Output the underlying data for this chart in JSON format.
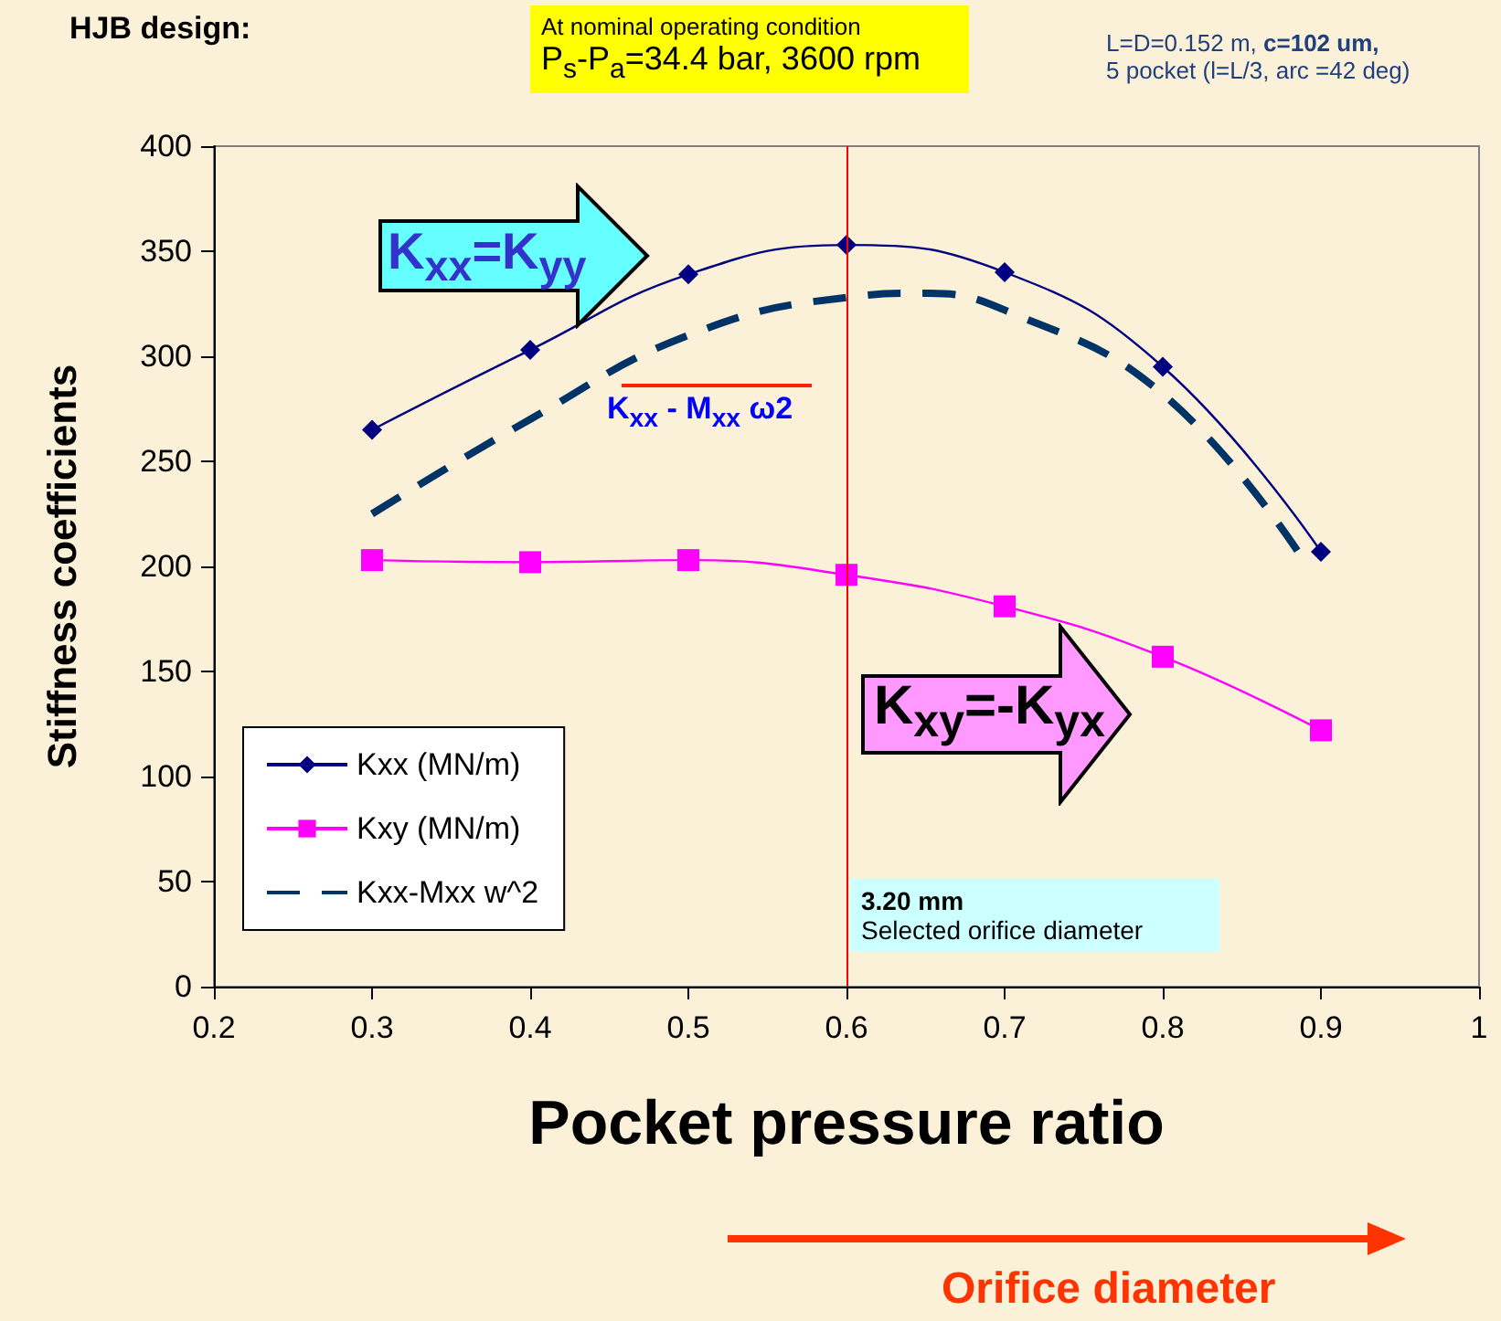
{
  "chart_data": {
    "type": "line",
    "xlabel": "Pocket pressure ratio",
    "ylabel": "Stiffness coefficients",
    "x": [
      0.3,
      0.4,
      0.5,
      0.6,
      0.7,
      0.8,
      0.9
    ],
    "series": [
      {
        "name": "Kxx (MN/m)",
        "color": "#000080",
        "marker": "diamond",
        "values": [
          265,
          303,
          339,
          353,
          340,
          295,
          207
        ]
      },
      {
        "name": "Kxy (MN/m)",
        "color": "#ff00ff",
        "marker": "square",
        "values": [
          203,
          202,
          203,
          196,
          181,
          157,
          122
        ]
      },
      {
        "name": "Kxx-Mxx w^2",
        "color": "#003366",
        "marker": "none",
        "line_style": "dashed",
        "x": [
          0.3,
          0.4,
          0.5,
          0.6,
          0.65,
          0.7,
          0.8,
          0.89
        ],
        "values": [
          225,
          270,
          310,
          328,
          330,
          322,
          282,
          202
        ]
      }
    ],
    "xlim": [
      0.2,
      1
    ],
    "xticks": [
      0.2,
      0.3,
      0.4,
      0.5,
      0.6,
      0.7,
      0.8,
      0.9,
      1
    ],
    "ylim": [
      0,
      400
    ],
    "yticks": [
      0,
      50,
      100,
      150,
      200,
      250,
      300,
      350,
      400
    ],
    "grid": false,
    "legend": "bottom left",
    "ref_lines": [
      {
        "axis": "x",
        "value": 0.6,
        "label": "3.20 mm",
        "color": "#ff0000"
      }
    ],
    "annotations": [
      "HJB design:",
      "At nominal operating condition",
      "P$_{s}$-P$_{a}$=34.4 bar, 3600 rpm",
      "L=D=0.152 m,",
      "c=102 um,",
      "5 pocket (l=L/3, arc =42 deg)",
      "K$_{xx}$=K$_{yy}$",
      "K$_{xx}$ - M$_{xx}$ ω2",
      "K$_{xy}$=-K$_{yx}$",
      "Selected orifice diameter",
      "Orifice diameter"
    ]
  }
}
